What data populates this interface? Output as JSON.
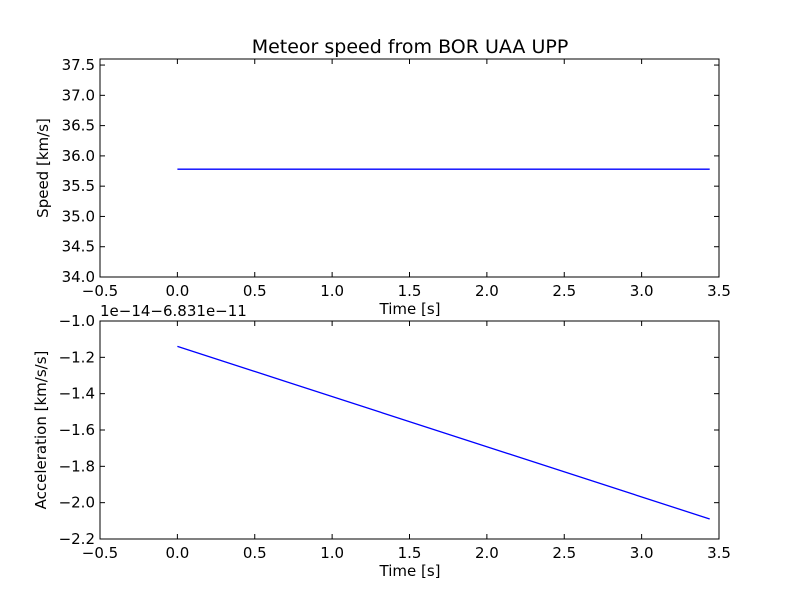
{
  "colors": {
    "background": "#ffffff",
    "series": "#0000ff"
  },
  "chart_data": [
    {
      "type": "line",
      "title": "Meteor speed from  BOR UAA UPP",
      "xlabel": "Time [s]",
      "ylabel": "Speed [km/s]",
      "xlim": [
        -0.5,
        3.5
      ],
      "ylim": [
        34.0,
        37.6
      ],
      "xticks": [
        -0.5,
        0.0,
        0.5,
        1.0,
        1.5,
        2.0,
        2.5,
        3.0,
        3.5
      ],
      "xtick_labels": [
        "−0.5",
        "0.0",
        "0.5",
        "1.0",
        "1.5",
        "2.0",
        "2.5",
        "3.0",
        "3.5"
      ],
      "yticks": [
        34.0,
        34.5,
        35.0,
        35.5,
        36.0,
        36.5,
        37.0,
        37.5
      ],
      "ytick_labels": [
        "34.0",
        "34.5",
        "35.0",
        "35.5",
        "36.0",
        "36.5",
        "37.0",
        "37.5"
      ],
      "grid": false,
      "series": [
        {
          "x": [
            0.0,
            3.44
          ],
          "y": [
            35.78,
            35.78
          ]
        }
      ]
    },
    {
      "type": "line",
      "xlabel": "Time [s]",
      "ylabel": "Acceleration [km/s/s]",
      "offset_text": "1e−14−6.831e−11",
      "xlim": [
        -0.5,
        3.5
      ],
      "ylim": [
        -2.2,
        -1.0
      ],
      "xticks": [
        -0.5,
        0.0,
        0.5,
        1.0,
        1.5,
        2.0,
        2.5,
        3.0,
        3.5
      ],
      "xtick_labels": [
        "−0.5",
        "0.0",
        "0.5",
        "1.0",
        "1.5",
        "2.0",
        "2.5",
        "3.0",
        "3.5"
      ],
      "yticks": [
        -2.2,
        -2.0,
        -1.8,
        -1.6,
        -1.4,
        -1.2,
        -1.0
      ],
      "ytick_labels": [
        "−2.2",
        "−2.0",
        "−1.8",
        "−1.6",
        "−1.4",
        "−1.2",
        "−1.0"
      ],
      "grid": false,
      "series": [
        {
          "x": [
            0.0,
            3.44
          ],
          "y": [
            -1.14,
            -2.09
          ]
        }
      ]
    }
  ]
}
